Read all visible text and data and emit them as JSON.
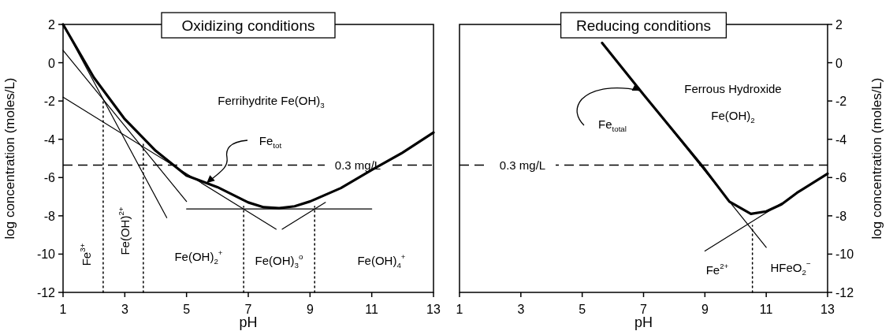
{
  "chart_data": [
    {
      "type": "line",
      "title": "Oxidizing conditions",
      "xlabel": "pH",
      "ylabel": "log concentration (moles/L)",
      "xlim": [
        1,
        13
      ],
      "xticks": [
        1,
        3,
        5,
        7,
        9,
        11,
        13
      ],
      "ylim": [
        -12,
        2
      ],
      "yticks": [
        -12,
        -10,
        -8,
        -6,
        -4,
        -2,
        0,
        2
      ],
      "series": [
        {
          "color": "#000000",
          "x": [
            1,
            2,
            3,
            4,
            5,
            6,
            7,
            7.5,
            8,
            8.5,
            9,
            10,
            11,
            12,
            13
          ],
          "values": [
            2,
            -0.78,
            -2.95,
            -4.6,
            -5.9,
            -6.5,
            -7.3,
            -7.55,
            -7.6,
            -7.5,
            -7.25,
            -6.55,
            -5.6,
            -4.7,
            -3.65
          ]
        },
        {
          "color": "#000000",
          "x": [
            1,
            4.36
          ],
          "values": [
            2,
            -8.1
          ]
        },
        {
          "color": "#000000",
          "x": [
            1,
            5
          ],
          "values": [
            0.65,
            -7.25
          ]
        },
        {
          "color": "#000000",
          "x": [
            1,
            7.9
          ],
          "values": [
            -1.8,
            -8.7
          ]
        },
        {
          "color": "#000000",
          "x": [
            5,
            11
          ],
          "values": [
            -7.64,
            -7.64
          ]
        },
        {
          "color": "#000000",
          "x": [
            8.1,
            9.5
          ],
          "values": [
            -8.7,
            -7.3
          ]
        },
        {
          "color": "#000000",
          "line_style": "dotted",
          "x": [
            2.3,
            2.3
          ],
          "values": [
            -12,
            -2
          ]
        },
        {
          "color": "#000000",
          "line_style": "dotted",
          "x": [
            3.6,
            3.6
          ],
          "values": [
            -12,
            -4.2
          ]
        },
        {
          "color": "#000000",
          "line_style": "dotted",
          "x": [
            6.85,
            6.85
          ],
          "values": [
            -12,
            -7.5
          ]
        },
        {
          "color": "#000000",
          "line_style": "dotted",
          "x": [
            9.15,
            9.15
          ],
          "values": [
            -12,
            -7.5
          ]
        }
      ],
      "ref_lines": [
        {
          "axis": "y",
          "value": -5.35,
          "label": "0.3 mg/L",
          "line_style": "dashed"
        }
      ],
      "annotations": [
        "Ferrihydrite Fe(OH)$_{3}$",
        {
          "text": "Fe$_{tot}$",
          "x": 5.65,
          "y": -6.29
        },
        "Fe$^{3+}$",
        "Fe(OH)$^{2+}$",
        "Fe(OH)$_{2}$$^{+}$",
        "Fe(OH)$_{3}$$^{o}$",
        "Fe(OH)$_{4}$$^{+}$"
      ]
    },
    {
      "type": "line",
      "title": "Reducing conditions",
      "xlabel": "pH",
      "ylabel": "log concentration (moles/L)",
      "xlim": [
        1,
        13
      ],
      "xticks": [
        1,
        3,
        5,
        7,
        9,
        11,
        13
      ],
      "ylim": [
        -12,
        2
      ],
      "yticks": [
        -12,
        -10,
        -8,
        -6,
        -4,
        -2,
        0,
        2
      ],
      "series": [
        {
          "color": "#000000",
          "x": [
            5.65,
            7,
            9,
            9.8,
            10.5,
            11,
            11.5,
            12,
            13
          ],
          "values": [
            1.03,
            -1.66,
            -5.57,
            -7.26,
            -7.9,
            -7.77,
            -7.4,
            -6.8,
            -5.8
          ]
        },
        {
          "color": "#000000",
          "x": [
            5.65,
            11
          ],
          "values": [
            1.03,
            -9.65
          ]
        },
        {
          "color": "#000000",
          "x": [
            9,
            11.5
          ],
          "values": [
            -9.84,
            -7.34
          ]
        },
        {
          "color": "#000000",
          "line_style": "dotted",
          "x": [
            10.55,
            10.55
          ],
          "values": [
            -12,
            -8.5
          ]
        }
      ],
      "ref_lines": [
        {
          "axis": "y",
          "value": -5.35,
          "label": "0.3 mg/L",
          "line_style": "dashed"
        }
      ],
      "annotations": [
        "Ferrous Hydroxide",
        "Fe(OH)$_{2}$",
        {
          "text": "Fe$_{total}$",
          "x": 6.9,
          "y": -1.46
        },
        "Fe$^{2+}$",
        "HFeO$_{2}$$^{−}$"
      ]
    }
  ]
}
